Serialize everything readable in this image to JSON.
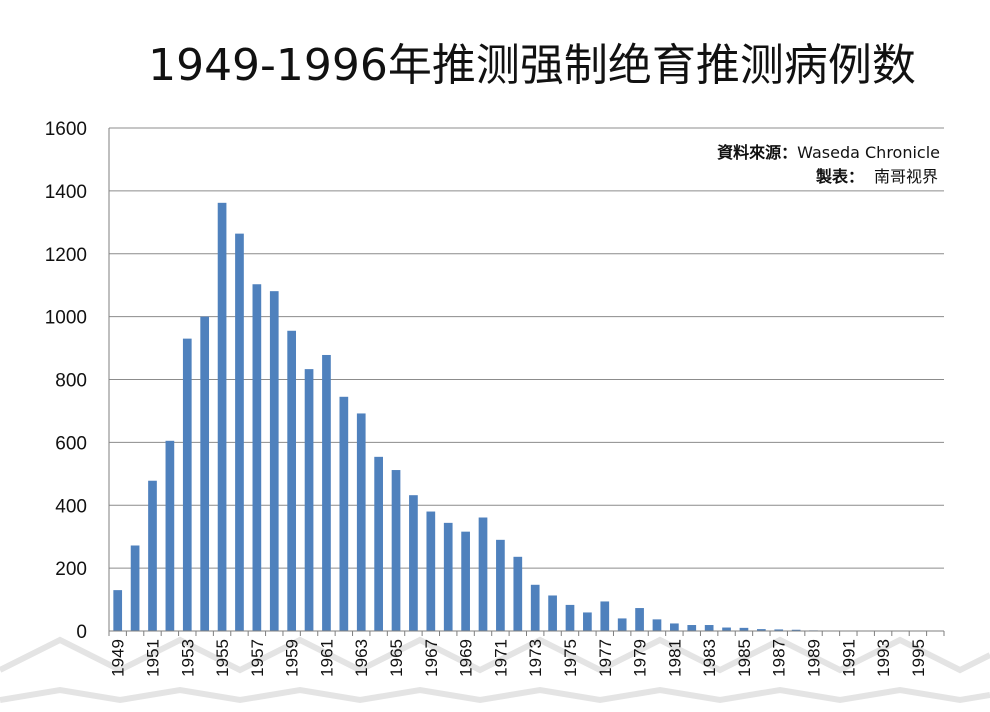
{
  "chart_data": {
    "type": "bar",
    "title": "1949-1996年推测强制绝育推测病例数",
    "xlabel": "",
    "ylabel": "",
    "ylim": [
      0,
      1600
    ],
    "yticks": [
      "0",
      "200",
      "400",
      "600",
      "800",
      "1000",
      "1200",
      "1400",
      "1600"
    ],
    "grid": true,
    "bar_color": "#4f81bd",
    "categories": [
      "1949",
      "1950",
      "1951",
      "1952",
      "1953",
      "1954",
      "1955",
      "1956",
      "1957",
      "1958",
      "1959",
      "1960",
      "1961",
      "1962",
      "1963",
      "1964",
      "1965",
      "1966",
      "1967",
      "1968",
      "1969",
      "1970",
      "1971",
      "1972",
      "1973",
      "1974",
      "1975",
      "1976",
      "1977",
      "1978",
      "1979",
      "1980",
      "1981",
      "1982",
      "1983",
      "1984",
      "1985",
      "1986",
      "1987",
      "1988",
      "1989",
      "1990",
      "1991",
      "1992",
      "1993",
      "1994",
      "1995",
      "1996"
    ],
    "xtick_labels": [
      "1949",
      "1951",
      "1953",
      "1955",
      "1957",
      "1959",
      "1961",
      "1963",
      "1965",
      "1967",
      "1969",
      "1971",
      "1973",
      "1975",
      "1977",
      "1979",
      "1981",
      "1983",
      "1985",
      "1987",
      "1989",
      "1991",
      "1993",
      "1995"
    ],
    "values": [
      130,
      272,
      478,
      605,
      930,
      1000,
      1362,
      1264,
      1103,
      1081,
      955,
      833,
      878,
      745,
      692,
      554,
      512,
      432,
      380,
      344,
      316,
      361,
      290,
      236,
      147,
      113,
      83,
      59,
      94,
      40,
      73,
      37,
      24,
      19,
      19,
      11,
      10,
      6,
      5,
      4,
      2,
      1,
      1,
      1,
      0,
      0,
      0,
      0
    ],
    "annotations": [
      {
        "label": "資料來源：",
        "text": "Waseda Chronicle"
      },
      {
        "label": "製表：",
        "text": "南哥视界"
      }
    ]
  }
}
